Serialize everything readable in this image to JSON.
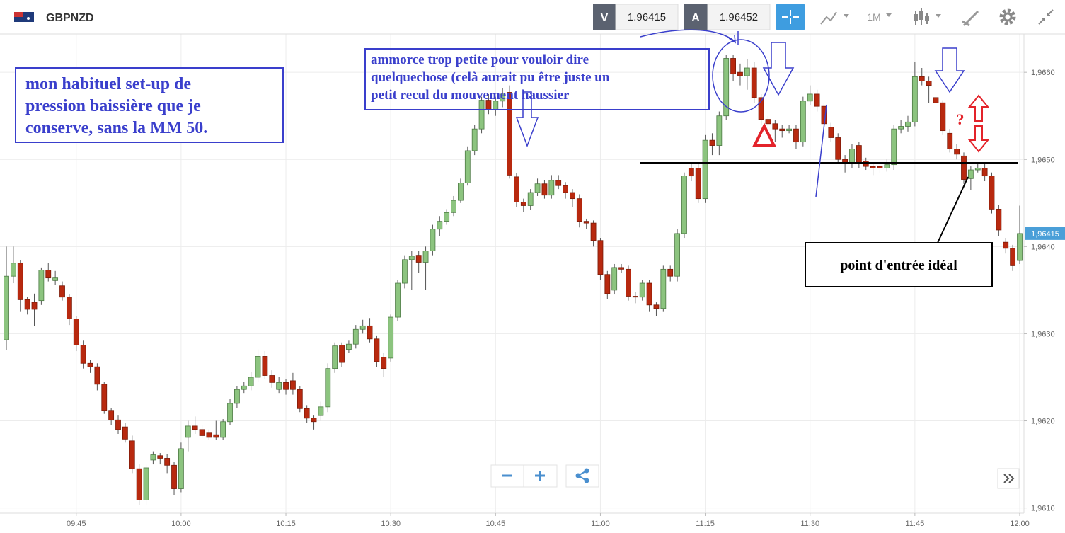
{
  "toolbar": {
    "symbol": "GBPNZD",
    "sell_label": "V",
    "sell_price": "1.96415",
    "buy_label": "A",
    "buy_price": "1.96452",
    "timeframe": "1M"
  },
  "annotations": {
    "setup": [
      "mon habituel set-up de",
      "pression baissière que je",
      "conserve, sans la MM 50."
    ],
    "comment": [
      "ammorce trop petite pour vouloir dire",
      "quelquechose (celà aurait pu être juste un",
      "petit recul du mouvement haussier"
    ],
    "question": "?",
    "entry": "point d'entrée idéal"
  },
  "chart_data": {
    "type": "candlestick",
    "up_color": "#8cc47f",
    "down_color": "#b8290f",
    "categories": [
      null,
      null,
      null,
      null,
      null,
      null,
      null,
      null,
      null,
      null,
      "09:45",
      null,
      null,
      null,
      null,
      null,
      null,
      null,
      null,
      null,
      null,
      null,
      null,
      null,
      null,
      "10:00",
      null,
      null,
      null,
      null,
      null,
      null,
      null,
      null,
      null,
      null,
      null,
      null,
      null,
      null,
      "10:15",
      null,
      null,
      null,
      null,
      null,
      null,
      null,
      null,
      null,
      null,
      null,
      null,
      null,
      null,
      "10:30",
      null,
      null,
      null,
      null,
      null,
      null,
      null,
      null,
      null,
      null,
      null,
      null,
      null,
      null,
      "10:45",
      null,
      null,
      null,
      null,
      null,
      null,
      null,
      null,
      null,
      null,
      null,
      null,
      null,
      null,
      "11:00",
      null,
      null,
      null,
      null,
      null,
      null,
      null,
      null,
      null,
      null,
      null,
      null,
      null,
      null,
      "11:15",
      null,
      null,
      null,
      null,
      null,
      null,
      null,
      null,
      null,
      null,
      null,
      null,
      null,
      null,
      "11:30",
      null,
      null,
      null,
      null,
      null,
      null,
      null,
      null,
      null,
      null,
      null,
      null,
      null,
      null,
      "11:45",
      null,
      null,
      null,
      null,
      null,
      null,
      null,
      null,
      null,
      null,
      null,
      null,
      null,
      null,
      "12:00"
    ],
    "open": [
      1.96293,
      1.96366,
      1.96381,
      1.96339,
      1.96336,
      1.96338,
      1.96373,
      1.96361,
      1.96355,
      1.96342,
      1.96317,
      1.96287,
      1.96266,
      1.96262,
      1.96242,
      1.96212,
      1.96201,
      1.96193,
      1.96177,
      1.96145,
      1.96109,
      1.96155,
      1.9616,
      1.96157,
      1.96149,
      1.96122,
      1.96181,
      1.96194,
      1.9619,
      1.96186,
      1.96184,
      1.96181,
      1.96199,
      1.9622,
      1.96236,
      1.9624,
      1.9625,
      1.96274,
      1.96252,
      1.96236,
      1.96244,
      1.96246,
      1.96236,
      1.96214,
      1.96203,
      1.96206,
      1.96216,
      1.9626,
      1.96287,
      1.96282,
      1.96288,
      1.96305,
      1.96309,
      1.96294,
      1.96273,
      1.96272,
      1.96319,
      1.96358,
      1.96385,
      1.9639,
      1.96382,
      1.96395,
      1.9642,
      1.96429,
      1.96439,
      1.96453,
      1.96473,
      1.9651,
      1.96535,
      1.96568,
      1.96557,
      1.96567,
      1.96577,
      1.9648,
      1.96451,
      1.96447,
      1.96462,
      1.96472,
      1.96459,
      1.96476,
      1.9647,
      1.96462,
      1.96455,
      1.96429,
      1.96427,
      1.96407,
      1.96368,
      1.9635,
      1.96376,
      1.96374,
      1.96343,
      1.96342,
      1.96358,
      1.96333,
      1.96329,
      1.96374,
      1.96366,
      1.96415,
      1.9649,
      1.9649,
      1.96455,
      1.96522,
      1.96516,
      1.9655,
      1.96616,
      1.966,
      1.96596,
      1.96605,
      1.96571,
      1.96546,
      1.96541,
      1.96535,
      1.96533,
      1.96535,
      1.9652,
      1.96567,
      1.96575,
      1.96561,
      1.96537,
      1.96525,
      1.965,
      1.96496,
      1.96516,
      1.96498,
      1.96492,
      1.96492,
      1.9649,
      1.96494,
      1.96535,
      1.96538,
      1.96543,
      1.96595,
      1.9659,
      1.96571,
      1.96565,
      1.9653,
      1.96512,
      1.96504,
      1.96478,
      1.96488,
      1.9649,
      1.96481,
      1.96443,
      1.96405,
      1.96398,
      1.96384
    ],
    "high": [
      1.964,
      1.964,
      1.96384,
      1.96342,
      1.96346,
      1.96376,
      1.96381,
      1.96372,
      1.9636,
      1.96345,
      1.9632,
      1.96292,
      1.9627,
      1.96266,
      1.96245,
      1.96215,
      1.96206,
      1.96198,
      1.96183,
      1.9615,
      1.9615,
      1.96165,
      1.96163,
      1.96162,
      1.96153,
      1.96175,
      1.962,
      1.96205,
      1.96195,
      1.9619,
      1.962,
      1.96202,
      1.96225,
      1.9624,
      1.96245,
      1.96256,
      1.96282,
      1.9628,
      1.96258,
      1.9625,
      1.96248,
      1.96255,
      1.9624,
      1.96218,
      1.96206,
      1.96222,
      1.96266,
      1.9629,
      1.9629,
      1.96292,
      1.9631,
      1.96316,
      1.96318,
      1.96298,
      1.96278,
      1.96322,
      1.96362,
      1.9639,
      1.96395,
      1.96395,
      1.964,
      1.96425,
      1.96435,
      1.96443,
      1.96458,
      1.96478,
      1.96515,
      1.9654,
      1.96572,
      1.96575,
      1.96572,
      1.96582,
      1.96585,
      1.96484,
      1.96455,
      1.96466,
      1.96478,
      1.96476,
      1.96482,
      1.96482,
      1.96474,
      1.96466,
      1.9646,
      1.96432,
      1.9643,
      1.9641,
      1.96372,
      1.9638,
      1.9638,
      1.96378,
      1.96348,
      1.96362,
      1.96362,
      1.96336,
      1.96378,
      1.96378,
      1.9642,
      1.96485,
      1.96495,
      1.96495,
      1.96528,
      1.9653,
      1.96555,
      1.9662,
      1.9662,
      1.9661,
      1.96615,
      1.96612,
      1.96575,
      1.9655,
      1.96545,
      1.9654,
      1.9654,
      1.9654,
      1.96572,
      1.96585,
      1.9658,
      1.96565,
      1.96542,
      1.9653,
      1.96505,
      1.96518,
      1.9652,
      1.96502,
      1.96496,
      1.96498,
      1.965,
      1.9654,
      1.96545,
      1.9655,
      1.96612,
      1.96605,
      1.96595,
      1.96575,
      1.96568,
      1.96535,
      1.96518,
      1.96508,
      1.96492,
      1.96495,
      1.96495,
      1.96485,
      1.96448,
      1.9641,
      1.96402,
      1.96447
    ],
    "low": [
      1.96281,
      1.96358,
      1.96325,
      1.96322,
      1.96309,
      1.96333,
      1.9636,
      1.96356,
      1.96338,
      1.9631,
      1.9628,
      1.9626,
      1.96255,
      1.96235,
      1.96208,
      1.96195,
      1.96185,
      1.96175,
      1.9614,
      1.96103,
      1.96103,
      1.9615,
      1.9615,
      1.9614,
      1.96115,
      1.96118,
      1.96165,
      1.96185,
      1.9618,
      1.96178,
      1.96178,
      1.96178,
      1.96195,
      1.96215,
      1.96232,
      1.96235,
      1.96245,
      1.96248,
      1.96238,
      1.96232,
      1.9623,
      1.9623,
      1.9621,
      1.96198,
      1.9619,
      1.962,
      1.9621,
      1.96255,
      1.96262,
      1.96278,
      1.96283,
      1.963,
      1.9629,
      1.96262,
      1.9625,
      1.96268,
      1.96315,
      1.96352,
      1.9635,
      1.9637,
      1.9635,
      1.9639,
      1.96412,
      1.96425,
      1.96435,
      1.9645,
      1.9647,
      1.96505,
      1.9653,
      1.96552,
      1.9655,
      1.9656,
      1.96478,
      1.96445,
      1.9644,
      1.96442,
      1.96458,
      1.96455,
      1.96455,
      1.96466,
      1.96455,
      1.96445,
      1.96422,
      1.9642,
      1.964,
      1.96362,
      1.9634,
      1.96345,
      1.9637,
      1.96338,
      1.96335,
      1.96338,
      1.96325,
      1.9632,
      1.96325,
      1.9636,
      1.9636,
      1.9641,
      1.96475,
      1.9645,
      1.9645,
      1.96505,
      1.96505,
      1.96545,
      1.9659,
      1.96585,
      1.9658,
      1.96565,
      1.9654,
      1.96535,
      1.9652,
      1.96525,
      1.9653,
      1.96512,
      1.96515,
      1.96562,
      1.96555,
      1.96535,
      1.9652,
      1.96495,
      1.96485,
      1.9649,
      1.9649,
      1.96488,
      1.96482,
      1.96484,
      1.96486,
      1.96488,
      1.9653,
      1.96532,
      1.96538,
      1.96585,
      1.96565,
      1.9656,
      1.96528,
      1.96508,
      1.965,
      1.96472,
      1.96465,
      1.96485,
      1.96475,
      1.96438,
      1.96412,
      1.96392,
      1.96372,
      1.9638
    ],
    "close": [
      1.96366,
      1.96381,
      1.96339,
      1.96328,
      1.96328,
      1.96373,
      1.96364,
      1.96364,
      1.96342,
      1.96317,
      1.96287,
      1.96266,
      1.96262,
      1.96242,
      1.96212,
      1.96201,
      1.9619,
      1.96179,
      1.96145,
      1.96109,
      1.96146,
      1.96161,
      1.96157,
      1.96149,
      1.96122,
      1.96168,
      1.96194,
      1.9619,
      1.96183,
      1.96181,
      1.96181,
      1.96199,
      1.9622,
      1.96236,
      1.9624,
      1.9625,
      1.96274,
      1.96252,
      1.96244,
      1.96244,
      1.96236,
      1.96236,
      1.96214,
      1.96203,
      1.96199,
      1.96216,
      1.9626,
      1.96286,
      1.96267,
      1.96288,
      1.96305,
      1.96309,
      1.96294,
      1.96268,
      1.9626,
      1.96319,
      1.96358,
      1.96385,
      1.96389,
      1.96382,
      1.96395,
      1.9642,
      1.96429,
      1.96439,
      1.96453,
      1.96473,
      1.9651,
      1.96535,
      1.96568,
      1.96557,
      1.96567,
      1.96575,
      1.96482,
      1.96451,
      1.96447,
      1.96462,
      1.96472,
      1.96459,
      1.96476,
      1.9647,
      1.96462,
      1.96455,
      1.96429,
      1.96427,
      1.96407,
      1.96368,
      1.96346,
      1.96376,
      1.96374,
      1.96343,
      1.96342,
      1.96358,
      1.96333,
      1.96329,
      1.96374,
      1.96366,
      1.96415,
      1.96481,
      1.96481,
      1.96455,
      1.96522,
      1.96516,
      1.9655,
      1.96616,
      1.96598,
      1.96596,
      1.96605,
      1.96571,
      1.96546,
      1.96541,
      1.96535,
      1.96533,
      1.96535,
      1.9652,
      1.96567,
      1.96575,
      1.96561,
      1.96541,
      1.96525,
      1.965,
      1.96496,
      1.96512,
      1.96496,
      1.96492,
      1.9649,
      1.9649,
      1.96494,
      1.96535,
      1.96538,
      1.96543,
      1.96595,
      1.9659,
      1.96585,
      1.96565,
      1.96533,
      1.96512,
      1.96506,
      1.96477,
      1.96488,
      1.9649,
      1.96481,
      1.96443,
      1.96419,
      1.96398,
      1.96378,
      1.96415
    ],
    "ylim": [
      1.96094,
      1.96644
    ],
    "yticks": [
      {
        "value": 1.961,
        "label": "1,9610"
      },
      {
        "value": 1.962,
        "label": "1,9620"
      },
      {
        "value": 1.963,
        "label": "1,9630"
      },
      {
        "value": 1.964,
        "label": "1,9640"
      },
      {
        "value": 1.965,
        "label": "1,9650"
      },
      {
        "value": 1.966,
        "label": "1,9660"
      }
    ],
    "last_price": {
      "value": 1.96415,
      "label": "1,96415"
    },
    "grid": true
  }
}
